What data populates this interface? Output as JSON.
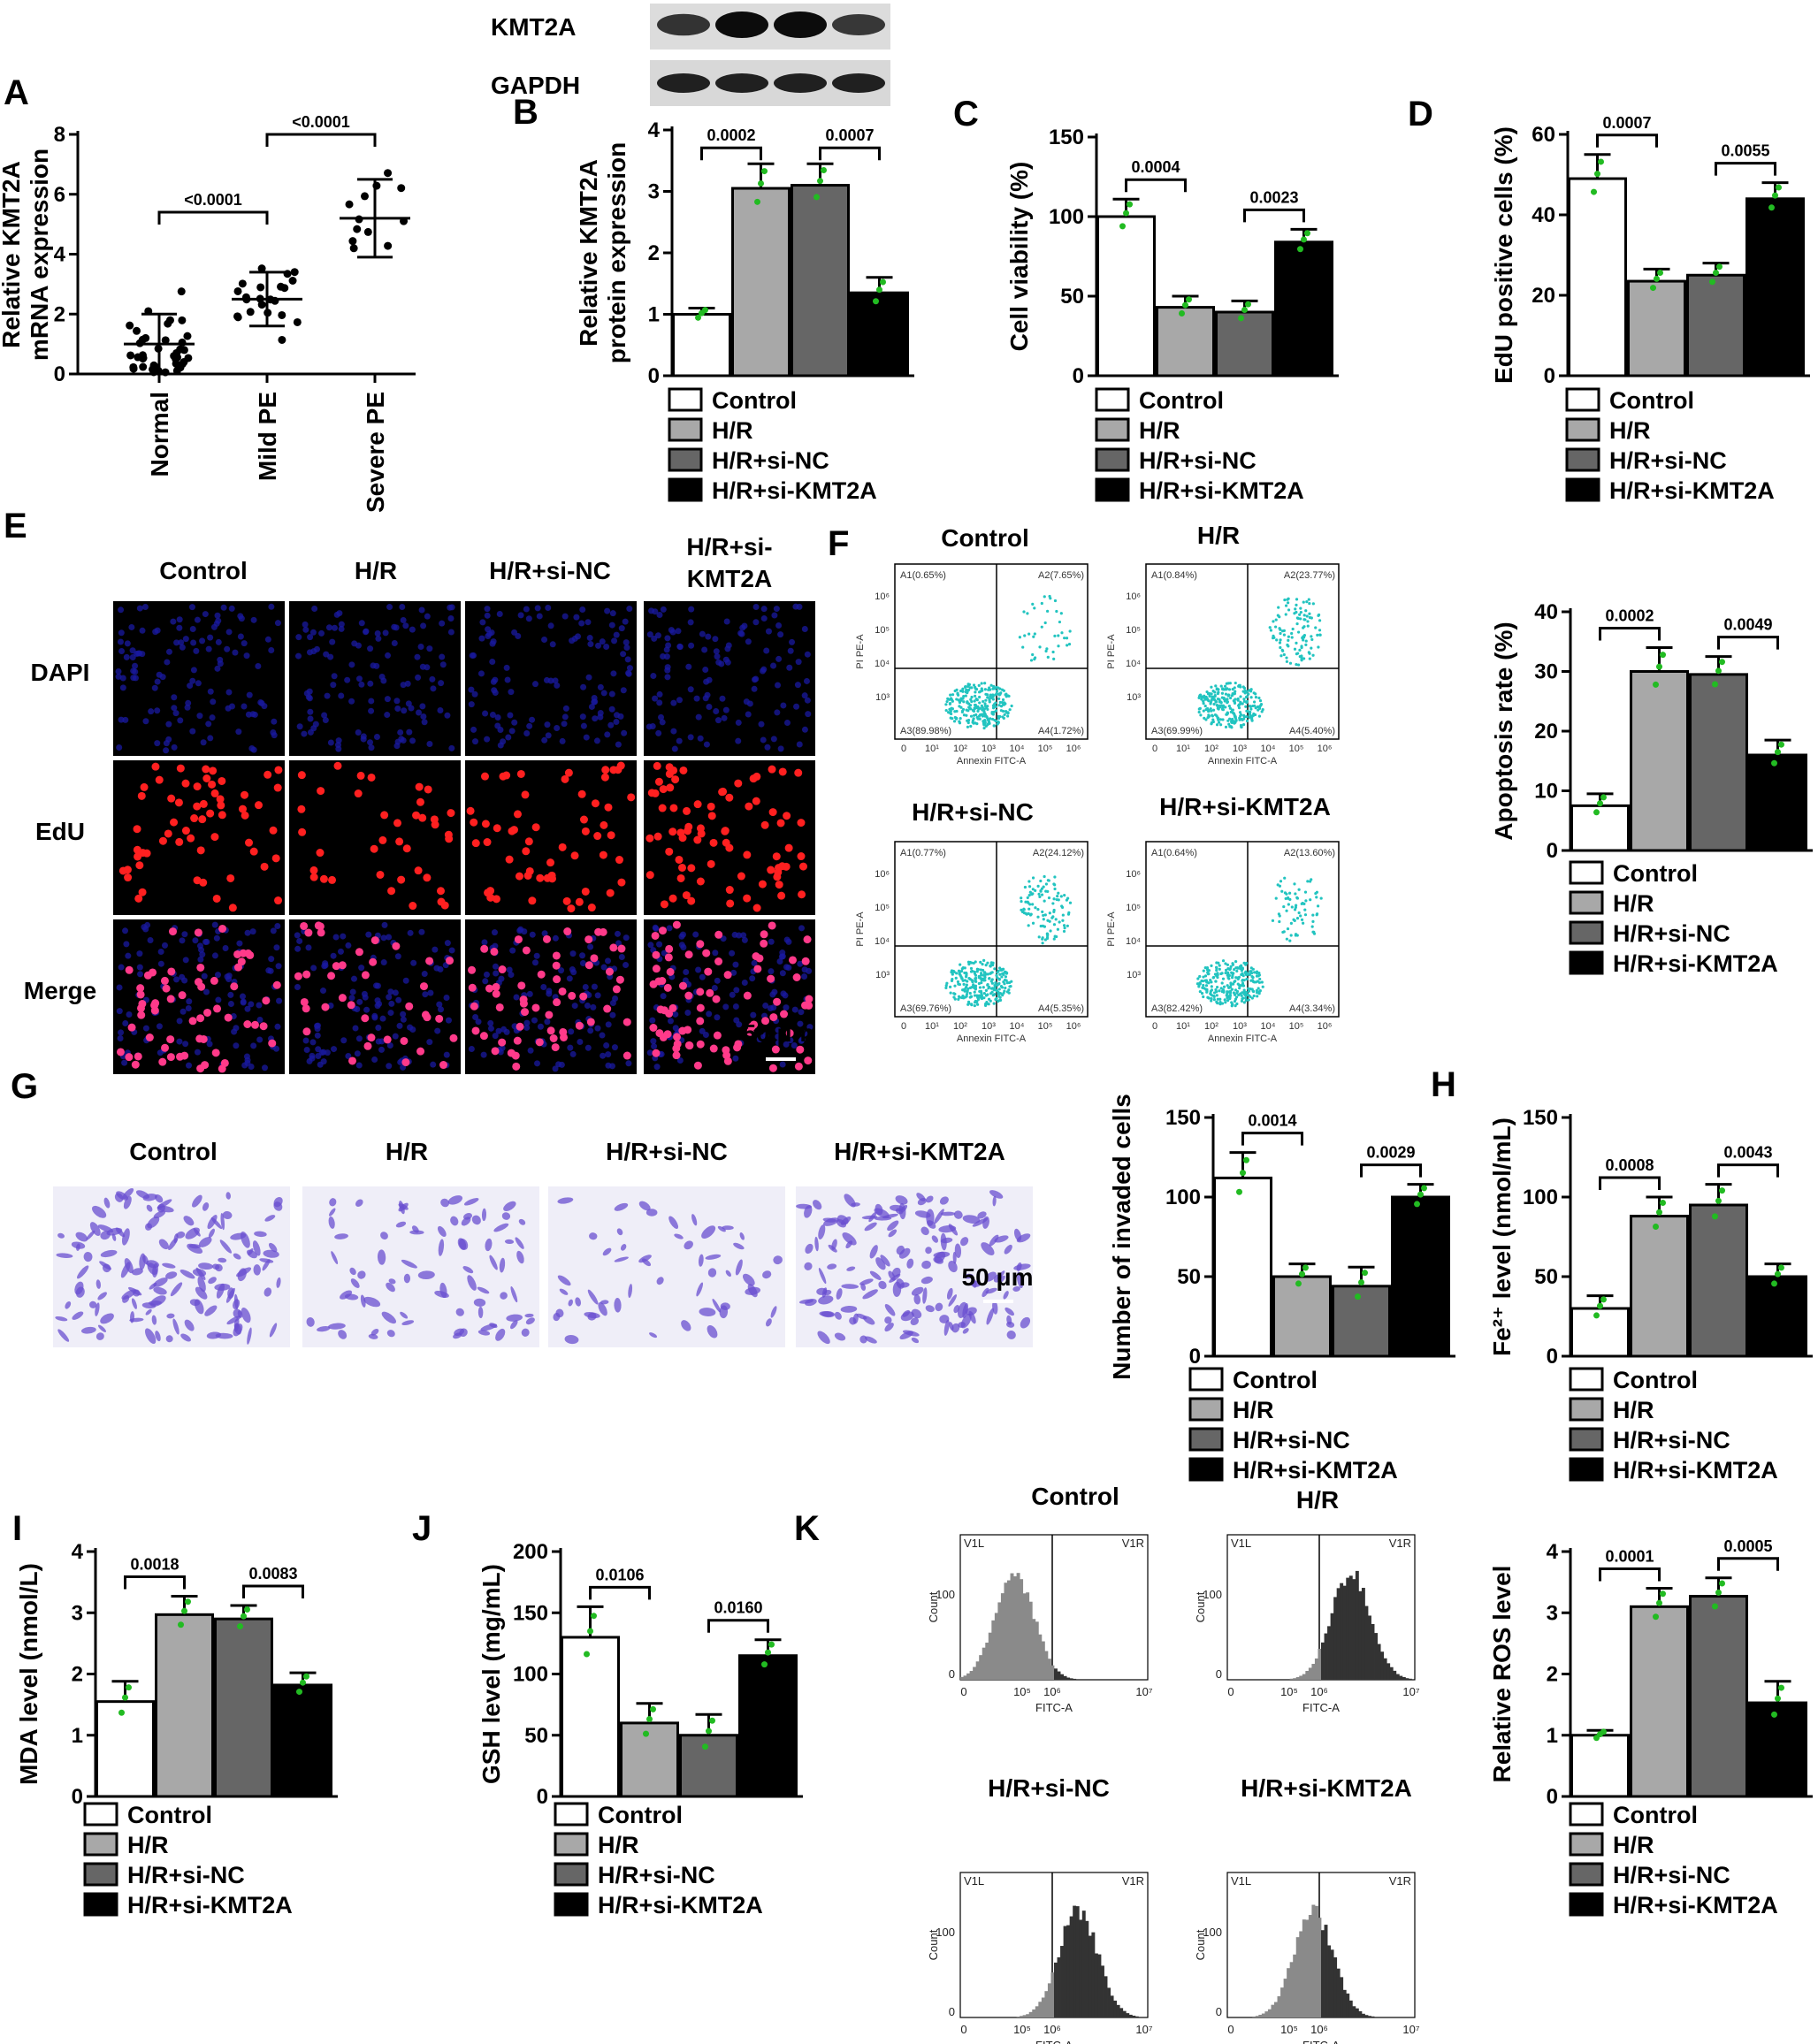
{
  "colors": {
    "control": "#ffffff",
    "hr": "#a8a8a8",
    "sinc": "#666666",
    "sikmt": "#000000",
    "dot": "#22bb22",
    "dapi": "#1a1aa0",
    "edu": "#ff2020",
    "cyto": "#22c4c0",
    "crystal": "#6a4fd0"
  },
  "legend": [
    "Control",
    "H/R",
    "H/R+si-NC",
    "H/R+si-KMT2A"
  ],
  "groups_short": [
    "Control",
    "H/R",
    "H/R+si-NC",
    "H/R+si-KMT2A"
  ],
  "panelA": {
    "letter": "A",
    "ylabel1": "Relative KMT2A",
    "ylabel2": "mRNA expression",
    "yticks": [
      "0",
      "2",
      "4",
      "6",
      "8"
    ],
    "categories": [
      "Normal",
      "Mild PE",
      "Severe PE"
    ],
    "pvals": [
      "<0.0001",
      "<0.0001"
    ]
  },
  "panelB": {
    "letter": "B",
    "blot_labels": [
      "KMT2A",
      "GAPDH"
    ],
    "ylabel1": "Relative KMT2A",
    "ylabel2": "protein expression",
    "yticks": [
      "0",
      "1",
      "2",
      "3",
      "4"
    ],
    "pvals": [
      "0.0002",
      "0.0007"
    ]
  },
  "panelC": {
    "letter": "C",
    "ylabel": "Cell viability (%)",
    "yticks": [
      "0",
      "50",
      "100",
      "150"
    ],
    "pvals": [
      "0.0004",
      "0.0023"
    ]
  },
  "panelD": {
    "letter": "D",
    "ylabel": "EdU positive cells (%)",
    "yticks": [
      "0",
      "20",
      "40",
      "60"
    ],
    "pvals": [
      "0.0007",
      "0.0055"
    ]
  },
  "panelE": {
    "letter": "E",
    "cols": [
      "Control",
      "H/R",
      "H/R+si-NC",
      "H/R+si-",
      "KMT2A"
    ],
    "rows": [
      "DAPI",
      "EdU",
      "Merge"
    ],
    "scale": "50 μm"
  },
  "panelF": {
    "letter": "F",
    "titles": [
      "Control",
      "H/R",
      "H/R+si-NC",
      "H/R+si-KMT2A"
    ],
    "quads": [
      [
        "A1(0.65%)",
        "A2(7.65%)",
        "A3(89.98%)",
        "A4(1.72%)"
      ],
      [
        "A1(0.84%)",
        "A2(23.77%)",
        "A3(69.99%)",
        "A4(5.40%)"
      ],
      [
        "A1(0.77%)",
        "A2(24.12%)",
        "A3(69.76%)",
        "A4(5.35%)"
      ],
      [
        "A1(0.64%)",
        "A2(13.60%)",
        "A3(82.42%)",
        "A4(3.34%)"
      ]
    ],
    "xaxis": "Annexin FITC-A",
    "yaxis": "PI PE-A",
    "ticks": [
      "0",
      "10¹",
      "10²",
      "10³",
      "10⁴",
      "10⁵",
      "10⁶"
    ],
    "ylabel": "Apoptosis rate (%)",
    "yticks": [
      "0",
      "10",
      "20",
      "30",
      "40"
    ],
    "pvals": [
      "0.0002",
      "0.0049"
    ]
  },
  "panelG": {
    "letter": "G",
    "cols": [
      "Control",
      "H/R",
      "H/R+si-NC",
      "H/R+si-KMT2A"
    ],
    "scale": "50 μm",
    "ylabel": "Number of invaded cells",
    "yticks": [
      "0",
      "50",
      "100",
      "150"
    ],
    "pvals": [
      "0.0014",
      "0.0029"
    ]
  },
  "panelH": {
    "letter": "H",
    "ylabel": "Fe²⁺ level (nmol/mL)",
    "yticks": [
      "0",
      "50",
      "100",
      "150"
    ],
    "pvals": [
      "0.0008",
      "0.0043"
    ]
  },
  "panelI": {
    "letter": "I",
    "ylabel": "MDA level (nmol/L)",
    "yticks": [
      "0",
      "1",
      "2",
      "3",
      "4"
    ],
    "pvals": [
      "0.0018",
      "0.0083"
    ]
  },
  "panelJ": {
    "letter": "J",
    "ylabel": "GSH level (mg/mL)",
    "yticks": [
      "0",
      "50",
      "100",
      "150",
      "200"
    ],
    "pvals": [
      "0.0106",
      "0.0160"
    ]
  },
  "panelK": {
    "letter": "K",
    "titles": [
      "Control",
      "H/R",
      "H/R+si-NC",
      "H/R+si-KMT2A"
    ],
    "gate": [
      "V1L",
      "V1R"
    ],
    "xaxis": "FITC-A",
    "yaxis": "Count",
    "ticks": [
      "0",
      "10⁵",
      "10⁶",
      "10⁷"
    ],
    "yticks_hist": [
      "0",
      "100"
    ],
    "ylabel": "Relative ROS level",
    "yticks": [
      "0",
      "1",
      "2",
      "3",
      "4"
    ],
    "pvals": [
      "0.0001",
      "0.0005"
    ]
  },
  "chart_data": [
    {
      "panel": "A",
      "type": "scatter",
      "categories": [
        "Normal",
        "Mild PE",
        "Severe PE"
      ],
      "means": [
        1.0,
        2.5,
        5.2
      ],
      "sd": [
        1.0,
        0.9,
        1.3
      ],
      "ylim": [
        0,
        8
      ],
      "ylabel": "Relative KMT2A mRNA expression"
    },
    {
      "panel": "B",
      "type": "bar",
      "categories": [
        "Control",
        "H/R",
        "H/R+si-NC",
        "H/R+si-KMT2A"
      ],
      "values": [
        1.0,
        3.05,
        3.1,
        1.35
      ],
      "errors": [
        0.1,
        0.4,
        0.35,
        0.25
      ],
      "ylim": [
        0,
        4
      ],
      "ylabel": "Relative KMT2A protein expression"
    },
    {
      "panel": "C",
      "type": "bar",
      "categories": [
        "Control",
        "H/R",
        "H/R+si-NC",
        "H/R+si-KMT2A"
      ],
      "values": [
        100,
        43,
        40,
        84
      ],
      "errors": [
        11,
        7,
        7,
        8
      ],
      "ylim": [
        0,
        150
      ],
      "ylabel": "Cell viability (%)"
    },
    {
      "panel": "D",
      "type": "bar",
      "categories": [
        "Control",
        "H/R",
        "H/R+si-NC",
        "H/R+si-KMT2A"
      ],
      "values": [
        49,
        23.5,
        25,
        44
      ],
      "errors": [
        6,
        3,
        3,
        4
      ],
      "ylim": [
        0,
        60
      ],
      "ylabel": "EdU positive cells (%)"
    },
    {
      "panel": "F",
      "type": "bar",
      "categories": [
        "Control",
        "H/R",
        "H/R+si-NC",
        "H/R+si-KMT2A"
      ],
      "values": [
        7.5,
        30,
        29.5,
        16
      ],
      "errors": [
        2,
        4,
        3,
        2.5
      ],
      "ylim": [
        0,
        40
      ],
      "ylabel": "Apoptosis rate (%)"
    },
    {
      "panel": "G",
      "type": "bar",
      "categories": [
        "Control",
        "H/R",
        "H/R+si-NC",
        "H/R+si-KMT2A"
      ],
      "values": [
        112,
        50,
        44,
        100
      ],
      "errors": [
        16,
        8,
        12,
        8
      ],
      "ylim": [
        0,
        150
      ],
      "ylabel": "Number of invaded cells"
    },
    {
      "panel": "H",
      "type": "bar",
      "categories": [
        "Control",
        "H/R",
        "H/R+si-NC",
        "H/R+si-KMT2A"
      ],
      "values": [
        30,
        88,
        95,
        50
      ],
      "errors": [
        8,
        12,
        13,
        8
      ],
      "ylim": [
        0,
        150
      ],
      "ylabel": "Fe2+ level (nmol/mL)"
    },
    {
      "panel": "I",
      "type": "bar",
      "categories": [
        "Control",
        "H/R",
        "H/R+si-NC",
        "H/R+si-KMT2A"
      ],
      "values": [
        1.55,
        2.97,
        2.9,
        1.82
      ],
      "errors": [
        0.33,
        0.3,
        0.22,
        0.2
      ],
      "ylim": [
        0,
        4
      ],
      "ylabel": "MDA level (nmol/L)"
    },
    {
      "panel": "J",
      "type": "bar",
      "categories": [
        "Control",
        "H/R",
        "H/R+si-NC",
        "H/R+si-KMT2A"
      ],
      "values": [
        130,
        60,
        50,
        115
      ],
      "errors": [
        25,
        16,
        17,
        13
      ],
      "ylim": [
        0,
        200
      ],
      "ylabel": "GSH level (mg/mL)"
    },
    {
      "panel": "K",
      "type": "bar",
      "categories": [
        "Control",
        "H/R",
        "H/R+si-NC",
        "H/R+si-KMT2A"
      ],
      "values": [
        1.0,
        3.1,
        3.27,
        1.53
      ],
      "errors": [
        0.08,
        0.3,
        0.3,
        0.35
      ],
      "ylim": [
        0,
        4
      ],
      "ylabel": "Relative ROS level"
    }
  ]
}
